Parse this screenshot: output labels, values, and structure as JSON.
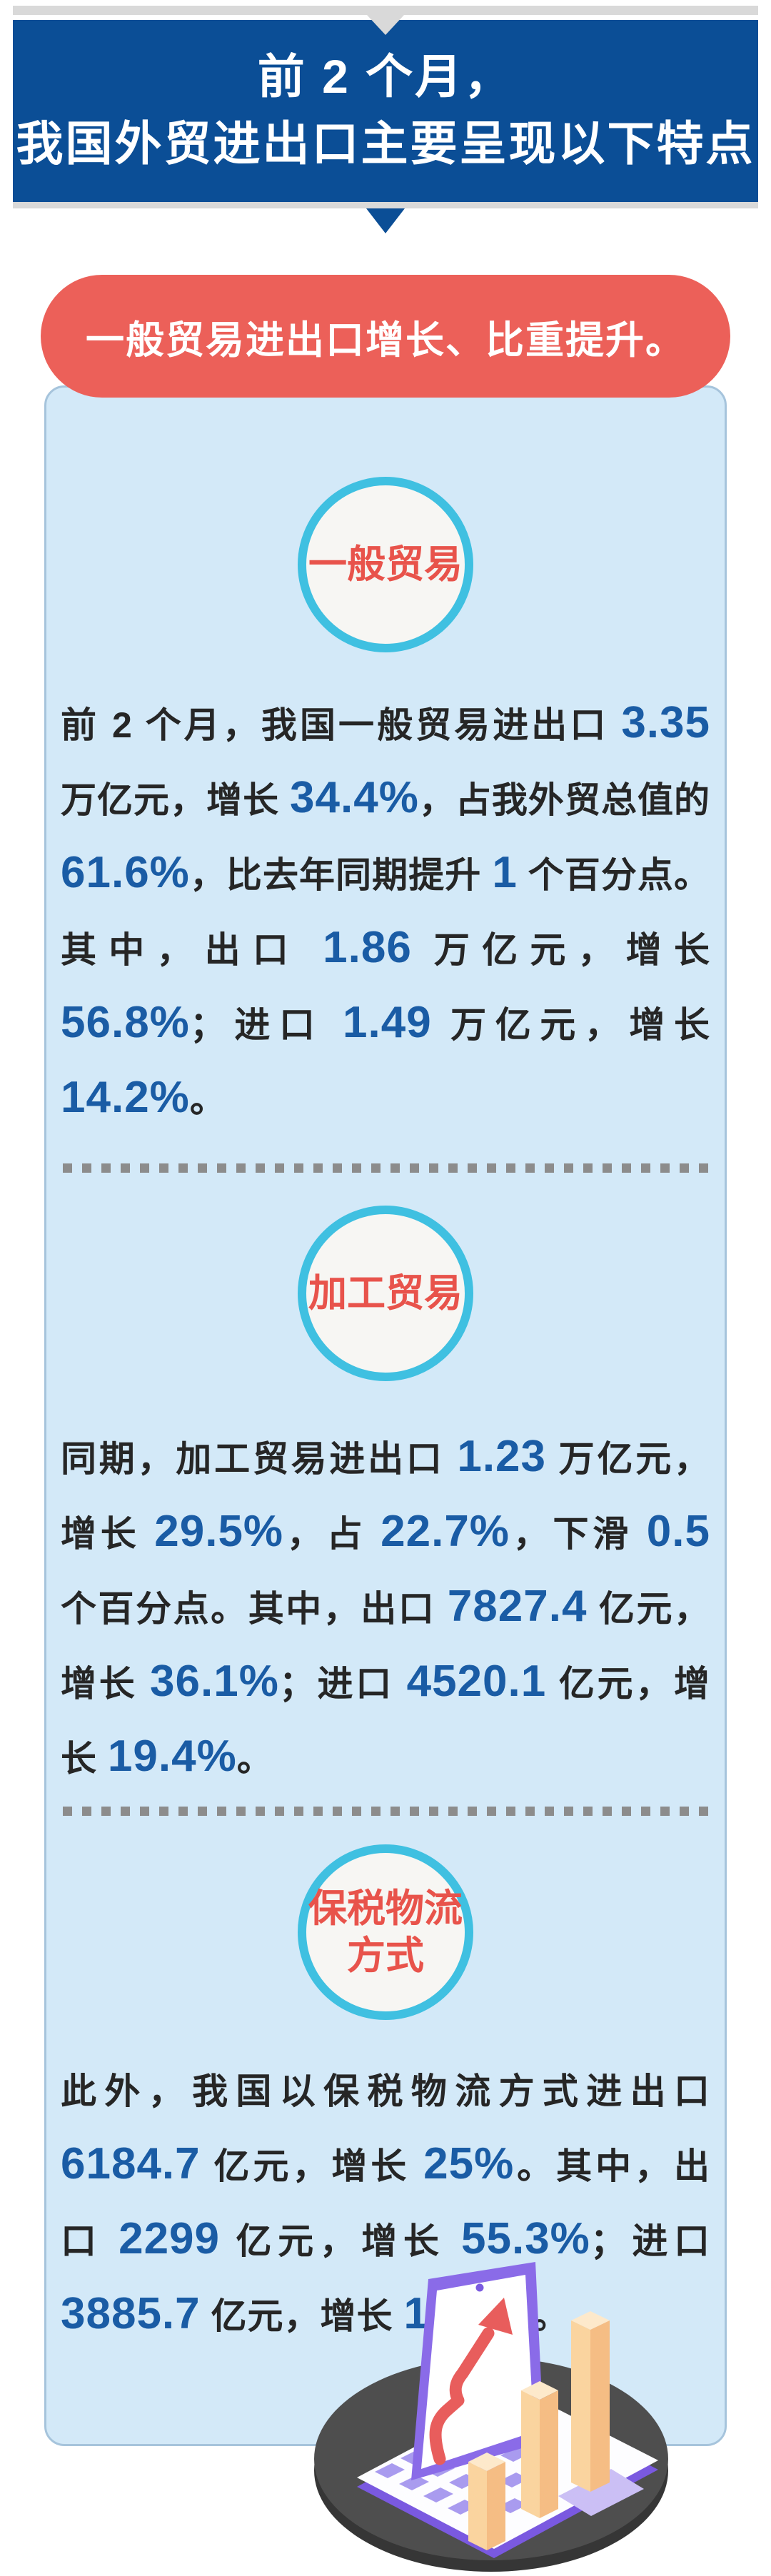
{
  "header": {
    "title_line1": "前 2 个月，",
    "title_line2": "我国外贸进出口主要呈现以下特点"
  },
  "section_banner": {
    "label": "一般贸易进出口增长、比重提升。"
  },
  "sections": [
    {
      "badge_line1": "一般贸易",
      "badge_line2": "",
      "paragraph": [
        {
          "t": "前 2 个月，我国一般贸易进出口 "
        },
        {
          "t": "3.35",
          "hl": true
        },
        {
          "t": " 万亿元，增长 "
        },
        {
          "t": "34.4%",
          "hl": true
        },
        {
          "t": "，占我外贸总值的 "
        },
        {
          "t": "61.6%",
          "hl": true
        },
        {
          "t": "，比去年同期提升 "
        },
        {
          "t": "1",
          "hl": true
        },
        {
          "t": " 个百分点。其中，出口 "
        },
        {
          "t": "1.86",
          "hl": true
        },
        {
          "t": " 万亿元，增长 "
        },
        {
          "t": "56.8%",
          "hl": true
        },
        {
          "t": "；进口 "
        },
        {
          "t": "1.49",
          "hl": true
        },
        {
          "t": " 万亿元，增长 "
        },
        {
          "t": "14.2%",
          "hl": true
        },
        {
          "t": "。"
        }
      ]
    },
    {
      "badge_line1": "加工贸易",
      "badge_line2": "",
      "paragraph": [
        {
          "t": "同期，加工贸易进出口 "
        },
        {
          "t": "1.23",
          "hl": true
        },
        {
          "t": " 万亿元，增长 "
        },
        {
          "t": "29.5%",
          "hl": true
        },
        {
          "t": "，占 "
        },
        {
          "t": "22.7%",
          "hl": true
        },
        {
          "t": "，下滑 "
        },
        {
          "t": "0.5",
          "hl": true
        },
        {
          "t": " 个百分点。其中，出口 "
        },
        {
          "t": "7827.4",
          "hl": true
        },
        {
          "t": " 亿元，增长 "
        },
        {
          "t": "36.1%",
          "hl": true
        },
        {
          "t": "；进口 "
        },
        {
          "t": "4520.1",
          "hl": true
        },
        {
          "t": " 亿元，增长 "
        },
        {
          "t": "19.4%",
          "hl": true
        },
        {
          "t": "。"
        }
      ]
    },
    {
      "badge_line1": "保税物流",
      "badge_line2": "方式",
      "paragraph": [
        {
          "t": "此外，我国以保税物流方式进出口 "
        },
        {
          "t": "6184.7",
          "hl": true
        },
        {
          "t": " 亿元，增长 "
        },
        {
          "t": "25%",
          "hl": true
        },
        {
          "t": "。其中，出口 "
        },
        {
          "t": "2299",
          "hl": true
        },
        {
          "t": " 亿元，增长 "
        },
        {
          "t": "55.3%",
          "hl": true
        },
        {
          "t": "；进口 "
        },
        {
          "t": "3885.7",
          "hl": true
        },
        {
          "t": " 亿元，增长 "
        },
        {
          "t": "12.1%",
          "hl": true
        },
        {
          "t": "。"
        }
      ]
    }
  ],
  "colors": {
    "banner_blue": "#0B4E96",
    "top_bar_gray": "#D9D9D9",
    "pill_red": "#EC6059",
    "panel_bg": "#D3E9F8",
    "panel_border": "#A6C4DC",
    "badge_border": "#3FC0E1",
    "badge_bg": "#F7F6F3",
    "badge_text": "#E8534B",
    "body_text": "#262626",
    "highlight_blue": "#1A5CA5",
    "divider_gray": "#8C8C8C"
  },
  "illustration": {
    "disc_gray": "#4E4E4E",
    "laptop_purple": "#8A6BE8",
    "key_purple": "#A99BEF",
    "trackpad_purple": "#CBBFF5",
    "arrow_red": "#E85D5C",
    "bar_orange": "#F8CC95"
  }
}
